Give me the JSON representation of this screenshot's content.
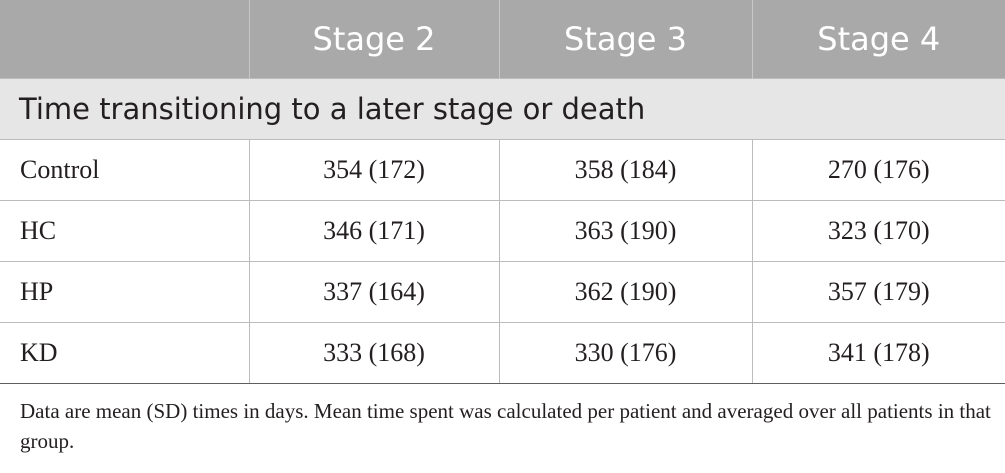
{
  "table": {
    "header": {
      "corner": "",
      "columns": [
        "Stage 2",
        "Stage 3",
        "Stage 4"
      ]
    },
    "section_title": "Time transitioning to a later stage or death",
    "rows": [
      {
        "label": "Control",
        "values": [
          "354 (172)",
          "358 (184)",
          "270 (176)"
        ]
      },
      {
        "label": "HC",
        "values": [
          "346 (171)",
          "363 (190)",
          "323 (170)"
        ]
      },
      {
        "label": "HP",
        "values": [
          "337 (164)",
          "362 (190)",
          "357 (179)"
        ]
      },
      {
        "label": "KD",
        "values": [
          "333 (168)",
          "330 (176)",
          "341 (178)"
        ]
      }
    ]
  },
  "footnote": "Data are mean (SD) times in days. Mean time spent was calculated per patient and averaged over all patients in that group.",
  "colors": {
    "header_bg": "#a9a9a9",
    "header_text": "#ffffff",
    "section_bg": "#e6e6e6",
    "text": "#231f20",
    "rule": "#bcbcbc"
  }
}
